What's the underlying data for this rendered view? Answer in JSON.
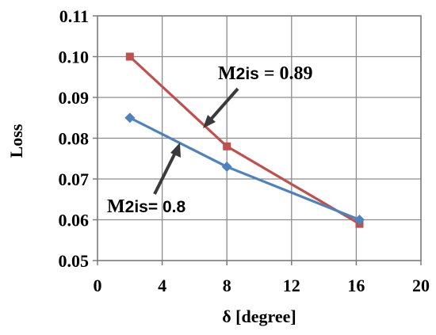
{
  "chart_data": {
    "type": "line",
    "xlabel": "δ [degree]",
    "ylabel": "Loss",
    "xlim": [
      0,
      20
    ],
    "ylim": [
      0.05,
      0.11
    ],
    "x_ticks": [
      "0",
      "4",
      "8",
      "12",
      "16",
      "20"
    ],
    "y_ticks": [
      "0.05",
      "0.06",
      "0.07",
      "0.08",
      "0.09",
      "0.10",
      "0.11"
    ],
    "grid": true,
    "legend": "none",
    "series": [
      {
        "color": "#c0504d",
        "marker": "square",
        "x": [
          2,
          8,
          16.2
        ],
        "y": [
          0.1,
          0.078,
          0.059
        ]
      },
      {
        "color": "#4f81bd",
        "marker": "diamond",
        "x": [
          2,
          8,
          16.2
        ],
        "y": [
          0.085,
          0.073,
          0.06
        ]
      }
    ],
    "annotations": [
      {
        "id": "upper",
        "prefix": "M",
        "sub": "2is",
        "rest": " = 0.89",
        "points_to_series": 0
      },
      {
        "id": "lower",
        "prefix": "M",
        "sub": "2is",
        "rest": "= 0.8",
        "points_to_series": 1
      }
    ]
  }
}
